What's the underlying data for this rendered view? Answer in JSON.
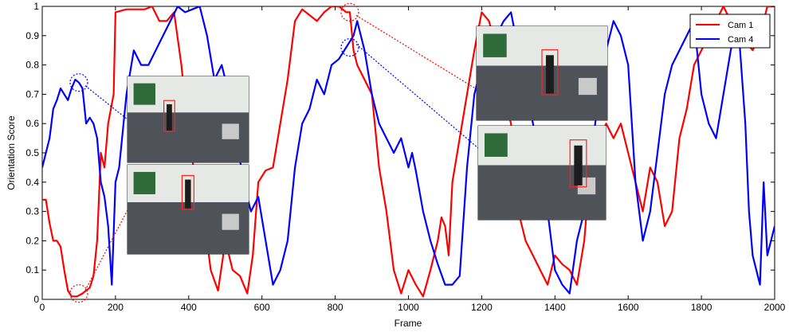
{
  "chart_data": {
    "type": "line",
    "title": "",
    "xlabel": "Frame",
    "ylabel": "Orientation Score",
    "xlim": [
      0,
      2000
    ],
    "ylim": [
      0,
      1
    ],
    "x_ticks": [
      0,
      200,
      400,
      600,
      800,
      1000,
      1200,
      1400,
      1600,
      1800,
      2000
    ],
    "y_ticks": [
      0,
      0.1,
      0.2,
      0.3,
      0.4,
      0.5,
      0.6,
      0.7,
      0.8,
      0.9,
      1
    ],
    "grid": false,
    "legend_position": "top-right",
    "series": [
      {
        "name": "Cam 1",
        "color": "#ff0000",
        "points": [
          [
            0,
            0.34
          ],
          [
            10,
            0.34
          ],
          [
            20,
            0.26
          ],
          [
            30,
            0.2
          ],
          [
            40,
            0.2
          ],
          [
            50,
            0.18
          ],
          [
            60,
            0.1
          ],
          [
            70,
            0.03
          ],
          [
            80,
            0.01
          ],
          [
            95,
            0.01
          ],
          [
            110,
            0.02
          ],
          [
            130,
            0.04
          ],
          [
            140,
            0.08
          ],
          [
            150,
            0.2
          ],
          [
            160,
            0.5
          ],
          [
            170,
            0.45
          ],
          [
            180,
            0.6
          ],
          [
            195,
            0.7
          ],
          [
            200,
            0.98
          ],
          [
            230,
            0.99
          ],
          [
            280,
            0.99
          ],
          [
            300,
            1.0
          ],
          [
            320,
            0.95
          ],
          [
            340,
            0.95
          ],
          [
            360,
            0.98
          ],
          [
            380,
            0.8
          ],
          [
            400,
            0.55
          ],
          [
            420,
            0.4
          ],
          [
            440,
            0.3
          ],
          [
            460,
            0.1
          ],
          [
            480,
            0.03
          ],
          [
            500,
            0.2
          ],
          [
            520,
            0.1
          ],
          [
            540,
            0.08
          ],
          [
            560,
            0.02
          ],
          [
            575,
            0.15
          ],
          [
            590,
            0.4
          ],
          [
            610,
            0.44
          ],
          [
            630,
            0.45
          ],
          [
            650,
            0.6
          ],
          [
            670,
            0.75
          ],
          [
            690,
            0.95
          ],
          [
            710,
            0.99
          ],
          [
            730,
            0.97
          ],
          [
            750,
            0.95
          ],
          [
            770,
            0.98
          ],
          [
            790,
            1.0
          ],
          [
            810,
            1.0
          ],
          [
            830,
            0.98
          ],
          [
            840,
            0.98
          ],
          [
            850,
            0.85
          ],
          [
            860,
            0.8
          ],
          [
            880,
            0.75
          ],
          [
            900,
            0.7
          ],
          [
            920,
            0.45
          ],
          [
            940,
            0.3
          ],
          [
            960,
            0.1
          ],
          [
            980,
            0.02
          ],
          [
            1000,
            0.1
          ],
          [
            1020,
            0.05
          ],
          [
            1040,
            0.01
          ],
          [
            1060,
            0.1
          ],
          [
            1080,
            0.2
          ],
          [
            1090,
            0.28
          ],
          [
            1100,
            0.25
          ],
          [
            1110,
            0.15
          ],
          [
            1120,
            0.4
          ],
          [
            1140,
            0.55
          ],
          [
            1160,
            0.7
          ],
          [
            1180,
            0.85
          ],
          [
            1200,
            0.98
          ],
          [
            1220,
            0.95
          ],
          [
            1240,
            0.85
          ],
          [
            1260,
            0.7
          ],
          [
            1280,
            0.6
          ],
          [
            1300,
            0.3
          ],
          [
            1320,
            0.2
          ],
          [
            1340,
            0.15
          ],
          [
            1360,
            0.1
          ],
          [
            1380,
            0.05
          ],
          [
            1400,
            0.15
          ],
          [
            1420,
            0.12
          ],
          [
            1440,
            0.1
          ],
          [
            1460,
            0.05
          ],
          [
            1480,
            0.2
          ],
          [
            1500,
            0.5
          ],
          [
            1520,
            0.55
          ],
          [
            1540,
            0.6
          ],
          [
            1560,
            0.55
          ],
          [
            1580,
            0.6
          ],
          [
            1600,
            0.5
          ],
          [
            1620,
            0.4
          ],
          [
            1640,
            0.3
          ],
          [
            1660,
            0.45
          ],
          [
            1680,
            0.4
          ],
          [
            1700,
            0.25
          ],
          [
            1720,
            0.3
          ],
          [
            1740,
            0.55
          ],
          [
            1760,
            0.65
          ],
          [
            1780,
            0.8
          ],
          [
            1800,
            0.85
          ],
          [
            1820,
            0.9
          ],
          [
            1840,
            0.95
          ],
          [
            1860,
            1.0
          ],
          [
            1880,
            0.95
          ],
          [
            1900,
            0.9
          ],
          [
            1920,
            0.88
          ],
          [
            1940,
            0.85
          ],
          [
            1960,
            0.9
          ],
          [
            1980,
            1.0
          ],
          [
            2000,
            1.0
          ]
        ]
      },
      {
        "name": "Cam 4",
        "color": "#0000ff",
        "points": [
          [
            0,
            0.45
          ],
          [
            10,
            0.5
          ],
          [
            20,
            0.55
          ],
          [
            30,
            0.65
          ],
          [
            40,
            0.68
          ],
          [
            50,
            0.72
          ],
          [
            60,
            0.7
          ],
          [
            70,
            0.68
          ],
          [
            80,
            0.72
          ],
          [
            90,
            0.75
          ],
          [
            100,
            0.74
          ],
          [
            110,
            0.72
          ],
          [
            120,
            0.6
          ],
          [
            130,
            0.62
          ],
          [
            140,
            0.6
          ],
          [
            150,
            0.55
          ],
          [
            160,
            0.4
          ],
          [
            170,
            0.35
          ],
          [
            180,
            0.25
          ],
          [
            190,
            0.05
          ],
          [
            200,
            0.4
          ],
          [
            210,
            0.45
          ],
          [
            230,
            0.7
          ],
          [
            250,
            0.85
          ],
          [
            270,
            0.8
          ],
          [
            290,
            0.8
          ],
          [
            310,
            0.85
          ],
          [
            330,
            0.9
          ],
          [
            350,
            0.95
          ],
          [
            370,
            1.0
          ],
          [
            390,
            0.98
          ],
          [
            410,
            0.99
          ],
          [
            430,
            1.0
          ],
          [
            450,
            0.9
          ],
          [
            470,
            0.75
          ],
          [
            490,
            0.8
          ],
          [
            510,
            0.7
          ],
          [
            530,
            0.55
          ],
          [
            550,
            0.4
          ],
          [
            570,
            0.3
          ],
          [
            590,
            0.35
          ],
          [
            610,
            0.2
          ],
          [
            630,
            0.05
          ],
          [
            650,
            0.1
          ],
          [
            670,
            0.2
          ],
          [
            690,
            0.45
          ],
          [
            710,
            0.6
          ],
          [
            730,
            0.65
          ],
          [
            750,
            0.75
          ],
          [
            770,
            0.7
          ],
          [
            790,
            0.8
          ],
          [
            810,
            0.82
          ],
          [
            830,
            0.86
          ],
          [
            840,
            0.88
          ],
          [
            850,
            0.9
          ],
          [
            860,
            0.95
          ],
          [
            880,
            0.85
          ],
          [
            900,
            0.7
          ],
          [
            920,
            0.6
          ],
          [
            940,
            0.55
          ],
          [
            960,
            0.5
          ],
          [
            980,
            0.55
          ],
          [
            1000,
            0.45
          ],
          [
            1010,
            0.5
          ],
          [
            1020,
            0.44
          ],
          [
            1040,
            0.3
          ],
          [
            1060,
            0.2
          ],
          [
            1080,
            0.12
          ],
          [
            1100,
            0.05
          ],
          [
            1120,
            0.05
          ],
          [
            1140,
            0.08
          ],
          [
            1160,
            0.45
          ],
          [
            1180,
            0.7
          ],
          [
            1200,
            0.8
          ],
          [
            1220,
            0.92
          ],
          [
            1240,
            0.9
          ],
          [
            1260,
            0.95
          ],
          [
            1280,
            0.98
          ],
          [
            1300,
            0.85
          ],
          [
            1320,
            0.75
          ],
          [
            1340,
            0.6
          ],
          [
            1360,
            0.5
          ],
          [
            1380,
            0.3
          ],
          [
            1400,
            0.1
          ],
          [
            1420,
            0.05
          ],
          [
            1440,
            0.02
          ],
          [
            1460,
            0.2
          ],
          [
            1480,
            0.3
          ],
          [
            1500,
            0.5
          ],
          [
            1520,
            0.7
          ],
          [
            1540,
            0.85
          ],
          [
            1560,
            0.95
          ],
          [
            1580,
            0.9
          ],
          [
            1600,
            0.8
          ],
          [
            1620,
            0.4
          ],
          [
            1640,
            0.2
          ],
          [
            1660,
            0.3
          ],
          [
            1680,
            0.5
          ],
          [
            1700,
            0.7
          ],
          [
            1720,
            0.8
          ],
          [
            1740,
            0.85
          ],
          [
            1760,
            0.9
          ],
          [
            1780,
            0.95
          ],
          [
            1800,
            0.7
          ],
          [
            1820,
            0.6
          ],
          [
            1840,
            0.55
          ],
          [
            1860,
            0.7
          ],
          [
            1880,
            0.85
          ],
          [
            1900,
            0.95
          ],
          [
            1920,
            0.6
          ],
          [
            1930,
            0.3
          ],
          [
            1940,
            0.15
          ],
          [
            1950,
            0.1
          ],
          [
            1960,
            0.05
          ],
          [
            1970,
            0.4
          ],
          [
            1980,
            0.15
          ],
          [
            1990,
            0.2
          ],
          [
            2000,
            0.25
          ]
        ]
      }
    ],
    "annotations": [
      {
        "series": "Cam 4",
        "x": 100,
        "y": 0.74,
        "marker": "dotted-circle",
        "inset": "top-left"
      },
      {
        "series": "Cam 1",
        "x": 100,
        "y": 0.02,
        "marker": "dotted-circle",
        "inset": "bottom-left"
      },
      {
        "series": "Cam 1",
        "x": 840,
        "y": 0.98,
        "marker": "dotted-circle",
        "inset": "top-right"
      },
      {
        "series": "Cam 4",
        "x": 840,
        "y": 0.86,
        "marker": "dotted-circle",
        "inset": "bottom-right"
      }
    ],
    "insets": [
      {
        "name": "inset-top-left",
        "description_icon": "camera-frame-icon"
      },
      {
        "name": "inset-bottom-left",
        "description_icon": "camera-frame-icon"
      },
      {
        "name": "inset-top-right",
        "description_icon": "camera-frame-icon"
      },
      {
        "name": "inset-bottom-right",
        "description_icon": "camera-frame-icon"
      }
    ]
  }
}
